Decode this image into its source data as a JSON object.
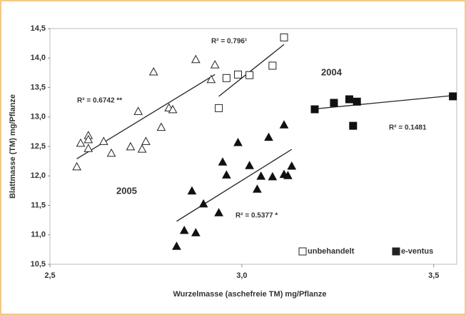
{
  "chart_data": {
    "type": "scatter",
    "x_label": "Wurzelmasse (aschefreie TM) mg/Pflanze",
    "y_label": "Blattmasse (TM) mg/Pflanze",
    "xlim": [
      2.5,
      3.56
    ],
    "ylim": [
      10.5,
      14.5
    ],
    "xticks": [
      {
        "value": 2.5,
        "label": "2,5"
      },
      {
        "value": 3.0,
        "label": "3,0"
      },
      {
        "value": 3.5,
        "label": "3,5"
      }
    ],
    "yticks": [
      {
        "value": 10.5,
        "label": "10,5"
      },
      {
        "value": 11.0,
        "label": "11,0"
      },
      {
        "value": 11.5,
        "label": "11,5"
      },
      {
        "value": 12.0,
        "label": "12,0"
      },
      {
        "value": 12.5,
        "label": "12,5"
      },
      {
        "value": 13.0,
        "label": "13,0"
      },
      {
        "value": 13.5,
        "label": "13,5"
      },
      {
        "value": 14.0,
        "label": "14,0"
      },
      {
        "value": 14.5,
        "label": "14,5"
      }
    ],
    "grid": false,
    "series": [
      {
        "marker": "triangle",
        "filled": false,
        "color": "#222222",
        "x": [
          2.57,
          2.58,
          2.6,
          2.6,
          2.6,
          2.64,
          2.66,
          2.71,
          2.74,
          2.75,
          2.73,
          2.77,
          2.79,
          2.81,
          2.82,
          2.88,
          2.92,
          2.93
        ],
        "values": [
          12.15,
          12.55,
          12.68,
          12.61,
          12.46,
          12.58,
          12.38,
          12.49,
          12.45,
          12.58,
          13.09,
          13.76,
          12.82,
          13.15,
          13.12,
          13.97,
          13.63,
          13.88
        ],
        "trend": {
          "x": [
            2.57,
            2.93
          ],
          "values": [
            12.29,
            13.72
          ]
        }
      },
      {
        "marker": "square",
        "filled": false,
        "color": "#222222",
        "x": [
          2.94,
          2.96,
          2.99,
          3.02,
          3.08,
          3.11
        ],
        "values": [
          13.15,
          13.66,
          13.72,
          13.71,
          13.87,
          14.35
        ],
        "trend": {
          "x": [
            2.94,
            3.11
          ],
          "values": [
            13.35,
            14.23
          ]
        }
      },
      {
        "marker": "triangle",
        "filled": true,
        "color": "#111111",
        "x": [
          2.83,
          2.85,
          2.88,
          2.87,
          2.9,
          2.94,
          2.95,
          2.96,
          2.99,
          3.02,
          3.04,
          3.05,
          3.07,
          3.08,
          3.11,
          3.12,
          3.11,
          3.13
        ],
        "values": [
          10.8,
          11.07,
          11.03,
          11.74,
          11.52,
          11.37,
          12.23,
          12.01,
          12.56,
          12.17,
          11.77,
          11.99,
          12.65,
          11.98,
          12.02,
          12.0,
          12.86,
          12.16
        ],
        "trend": {
          "x": [
            2.83,
            3.13
          ],
          "values": [
            11.23,
            12.45
          ]
        }
      },
      {
        "marker": "square",
        "filled": true,
        "color": "#111111",
        "x": [
          3.19,
          3.24,
          3.28,
          3.3,
          3.29,
          3.55
        ],
        "values": [
          13.13,
          13.24,
          13.3,
          13.26,
          12.85,
          13.35
        ],
        "trend": {
          "x": [
            3.18,
            3.56
          ],
          "values": [
            13.13,
            13.37
          ]
        }
      }
    ],
    "legend": [
      {
        "name": "unbehandelt",
        "filled": false
      },
      {
        "name": "e-ventus",
        "filled": true
      }
    ],
    "annotations": [
      "R² = 0.6742 **",
      "R² = 0.796¹",
      "R² = 0.5377 *",
      "R² = 0.1481",
      "2004",
      "2005"
    ]
  }
}
